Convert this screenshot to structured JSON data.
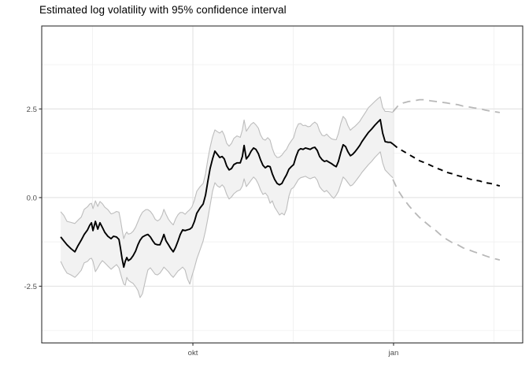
{
  "chart_data": {
    "type": "line",
    "title": "Estimated log volatility with 95% confidence interval",
    "xlabel": "",
    "ylabel": "",
    "legend": "none",
    "grid": "on",
    "x_unit": "days since first observation",
    "x_axis": {
      "xlim": [
        -8.7,
        211.8
      ],
      "major": [
        {
          "day": 60.6,
          "label": "okt"
        },
        {
          "day": 152.6,
          "label": "jan"
        }
      ],
      "minor": [
        14.6,
        106.6,
        198.6
      ]
    },
    "y_axis": {
      "ylim": [
        -4.1,
        4.84
      ],
      "major": [
        {
          "value": 2.5,
          "label": "2.5"
        },
        {
          "value": 0,
          "label": "0.0"
        },
        {
          "value": -2.5,
          "label": "-2.5"
        }
      ],
      "minor": [
        3.75,
        1.25,
        -1.25,
        -3.75
      ]
    },
    "colors": {
      "estimate": "#000000",
      "band_fill": "#f2f2f2",
      "band_edge": "#bdbdbd",
      "forecast": "#000000",
      "forecast_ci": "#b8b8b8",
      "grid_major": "#e5e5e5",
      "grid_minor": "#f0f0f0",
      "panel_border": "#333333",
      "axis_text": "#4d4d4d",
      "title": "#000000"
    },
    "series": {
      "x_days": [
        0,
        1.4,
        2.9,
        4.7,
        6.5,
        7.9,
        9.4,
        10.8,
        12.3,
        13.3,
        14.1,
        14.8,
        15.9,
        17,
        18,
        19.1,
        20.2,
        21.6,
        23.1,
        24.2,
        25.6,
        26.7,
        27.4,
        28.1,
        28.9,
        29.6,
        30.3,
        31,
        32.1,
        33.2,
        34.3,
        35.4,
        36.4,
        37.5,
        39,
        40,
        41.1,
        42.2,
        43.3,
        44.4,
        45.5,
        46.5,
        47.3,
        48.3,
        49.4,
        50.5,
        51.6,
        52.7,
        53.8,
        54.8,
        55.9,
        57,
        58.1,
        59.2,
        60.2,
        61.3,
        62.4,
        63.9,
        65.3,
        66.4,
        67.5,
        68.5,
        69.6,
        70.7,
        71.8,
        72.9,
        74,
        75,
        76.1,
        77.2,
        78.3,
        79.4,
        80.8,
        82.3,
        83.3,
        84.1,
        85.1,
        86.2,
        87.3,
        88.4,
        89.5,
        90.6,
        91.6,
        92.7,
        93.8,
        94.9,
        96,
        97,
        98.1,
        99.2,
        100.3,
        101.4,
        102.5,
        103.5,
        104.6,
        105.7,
        106.8,
        107.9,
        109,
        110,
        111.1,
        112.2,
        113.3,
        114.4,
        115.4,
        116.5,
        117.6,
        118.7,
        119.8,
        120.9,
        121.9,
        123,
        124.1,
        125.2,
        126.3,
        127.3,
        128.4,
        129.5,
        130.6,
        131.7,
        132.8,
        133.8,
        134.9,
        136,
        137.1,
        138.1,
        139.6,
        141.1,
        142.5,
        144,
        145.4,
        146.5,
        147.6,
        148.7,
        150.1,
        151.2,
        152.3
      ],
      "estimate": [
        -1.11,
        -1.22,
        -1.33,
        -1.44,
        -1.53,
        -1.36,
        -1.2,
        -1.04,
        -0.91,
        -0.78,
        -0.71,
        -0.93,
        -0.67,
        -0.89,
        -0.71,
        -0.84,
        -0.98,
        -1.09,
        -1.16,
        -1.09,
        -1.11,
        -1.18,
        -1.42,
        -1.71,
        -1.96,
        -1.8,
        -1.69,
        -1.78,
        -1.73,
        -1.64,
        -1.51,
        -1.33,
        -1.2,
        -1.11,
        -1.06,
        -1.04,
        -1.11,
        -1.22,
        -1.31,
        -1.33,
        -1.33,
        -1.18,
        -1.04,
        -1.22,
        -1.33,
        -1.44,
        -1.53,
        -1.4,
        -1.22,
        -1.04,
        -0.91,
        -0.93,
        -0.91,
        -0.89,
        -0.84,
        -0.67,
        -0.44,
        -0.29,
        -0.18,
        0.07,
        0.47,
        0.82,
        1.09,
        1.31,
        1.22,
        1.13,
        1.16,
        1.09,
        0.89,
        0.78,
        0.82,
        0.93,
        0.98,
        0.98,
        1.16,
        1.47,
        1.09,
        1.18,
        1.31,
        1.4,
        1.36,
        1.24,
        1.07,
        0.91,
        0.84,
        0.89,
        0.87,
        0.67,
        0.51,
        0.4,
        0.36,
        0.4,
        0.53,
        0.64,
        0.8,
        0.87,
        0.93,
        1.16,
        1.33,
        1.38,
        1.36,
        1.4,
        1.38,
        1.36,
        1.4,
        1.42,
        1.33,
        1.16,
        1.07,
        1.02,
        1.04,
        1.0,
        0.96,
        0.91,
        0.87,
        1.02,
        1.27,
        1.49,
        1.44,
        1.29,
        1.18,
        1.22,
        1.29,
        1.38,
        1.47,
        1.58,
        1.71,
        1.84,
        1.93,
        2.04,
        2.13,
        2.2,
        1.82,
        1.58,
        1.56,
        1.56,
        1.51
      ],
      "ci_upper": [
        -0.4,
        -0.5,
        -0.67,
        -0.7,
        -0.73,
        -0.64,
        -0.55,
        -0.33,
        -0.26,
        -0.18,
        -0.16,
        -0.31,
        -0.09,
        -0.25,
        -0.11,
        -0.17,
        -0.27,
        -0.34,
        -0.46,
        -0.44,
        -0.39,
        -0.41,
        -0.62,
        -0.89,
        -1.16,
        -1.04,
        -0.97,
        -1.03,
        -1.01,
        -0.95,
        -0.84,
        -0.68,
        -0.53,
        -0.41,
        -0.34,
        -0.34,
        -0.39,
        -0.48,
        -0.61,
        -0.66,
        -0.61,
        -0.49,
        -0.33,
        -0.47,
        -0.61,
        -0.7,
        -0.77,
        -0.6,
        -0.48,
        -0.42,
        -0.42,
        -0.47,
        -0.4,
        -0.34,
        -0.26,
        -0.07,
        0.18,
        0.31,
        0.4,
        0.67,
        1.09,
        1.42,
        1.71,
        1.91,
        1.86,
        1.82,
        1.88,
        1.76,
        1.53,
        1.45,
        1.53,
        1.67,
        1.74,
        1.7,
        1.91,
        2.19,
        1.87,
        1.98,
        2.07,
        2.12,
        2.05,
        1.96,
        1.77,
        1.65,
        1.62,
        1.69,
        1.62,
        1.39,
        1.21,
        1.13,
        1.14,
        1.2,
        1.29,
        1.36,
        1.5,
        1.6,
        1.69,
        1.94,
        2.08,
        2.09,
        2.03,
        2.04,
        2.0,
        2.01,
        2.08,
        2.13,
        2.07,
        1.88,
        1.76,
        1.74,
        1.79,
        1.72,
        1.66,
        1.64,
        1.63,
        1.81,
        2.09,
        2.29,
        2.21,
        2.03,
        1.9,
        1.96,
        2.01,
        2.08,
        2.15,
        2.25,
        2.39,
        2.54,
        2.62,
        2.71,
        2.79,
        2.84,
        2.54,
        2.43,
        2.43,
        2.42,
        2.4
      ],
      "ci_lower": [
        -1.8,
        -1.98,
        -2.13,
        -2.18,
        -2.25,
        -2.16,
        -2.05,
        -1.84,
        -1.8,
        -1.73,
        -1.71,
        -1.8,
        -2.09,
        -1.98,
        -1.87,
        -1.78,
        -1.84,
        -1.93,
        -2.02,
        -1.96,
        -1.89,
        -1.98,
        -2.13,
        -2.29,
        -2.44,
        -2.47,
        -2.25,
        -2.33,
        -2.38,
        -2.42,
        -2.51,
        -2.62,
        -2.82,
        -2.71,
        -2.29,
        -2.04,
        -1.98,
        -2.07,
        -2.16,
        -2.18,
        -2.13,
        -2.04,
        -1.96,
        -2.02,
        -2.09,
        -2.18,
        -2.25,
        -2.16,
        -2.07,
        -2.02,
        -1.96,
        -2.04,
        -2.29,
        -2.44,
        -2.2,
        -1.98,
        -1.73,
        -1.47,
        -1.22,
        -0.93,
        -0.58,
        -0.22,
        0.18,
        0.42,
        0.33,
        0.29,
        0.36,
        0.29,
        0.09,
        -0.04,
        0.02,
        0.11,
        0.18,
        0.22,
        0.33,
        0.53,
        0.31,
        0.4,
        0.49,
        0.58,
        0.51,
        0.38,
        0.22,
        0.09,
        0.13,
        0.04,
        -0.16,
        -0.09,
        -0.27,
        -0.38,
        -0.49,
        -0.44,
        -0.49,
        -0.33,
        0.04,
        0.24,
        0.29,
        0.4,
        0.51,
        0.56,
        0.58,
        0.6,
        0.56,
        0.53,
        0.56,
        0.58,
        0.49,
        0.31,
        0.22,
        0.16,
        0.2,
        0.13,
        0.04,
        -0.02,
        0.07,
        0.18,
        0.38,
        0.58,
        0.51,
        0.42,
        0.33,
        0.36,
        0.44,
        0.53,
        0.62,
        0.71,
        0.82,
        0.93,
        1.02,
        1.13,
        1.22,
        1.29,
        0.98,
        0.78,
        0.69,
        0.62,
        0.56
      ],
      "fc_x_days": [
        152.3,
        154.5,
        157,
        159.5,
        162,
        164.5,
        167,
        169.5,
        172,
        174.5,
        177,
        179.5,
        182,
        184.5,
        187,
        189.5,
        192,
        194.5,
        197,
        199.3,
        201.3
      ],
      "forecast": [
        1.51,
        1.4,
        1.31,
        1.22,
        1.13,
        1.04,
        0.98,
        0.91,
        0.84,
        0.78,
        0.71,
        0.67,
        0.62,
        0.58,
        0.53,
        0.49,
        0.47,
        0.42,
        0.4,
        0.36,
        0.33
      ],
      "forecast_upper": [
        2.42,
        2.58,
        2.67,
        2.71,
        2.73,
        2.76,
        2.76,
        2.73,
        2.71,
        2.69,
        2.67,
        2.64,
        2.62,
        2.58,
        2.56,
        2.53,
        2.51,
        2.47,
        2.44,
        2.42,
        2.4
      ],
      "forecast_lower": [
        0.51,
        0.22,
        -0.02,
        -0.22,
        -0.4,
        -0.56,
        -0.69,
        -0.82,
        -0.93,
        -1.07,
        -1.18,
        -1.27,
        -1.33,
        -1.42,
        -1.47,
        -1.53,
        -1.58,
        -1.64,
        -1.69,
        -1.73,
        -1.76
      ]
    }
  }
}
